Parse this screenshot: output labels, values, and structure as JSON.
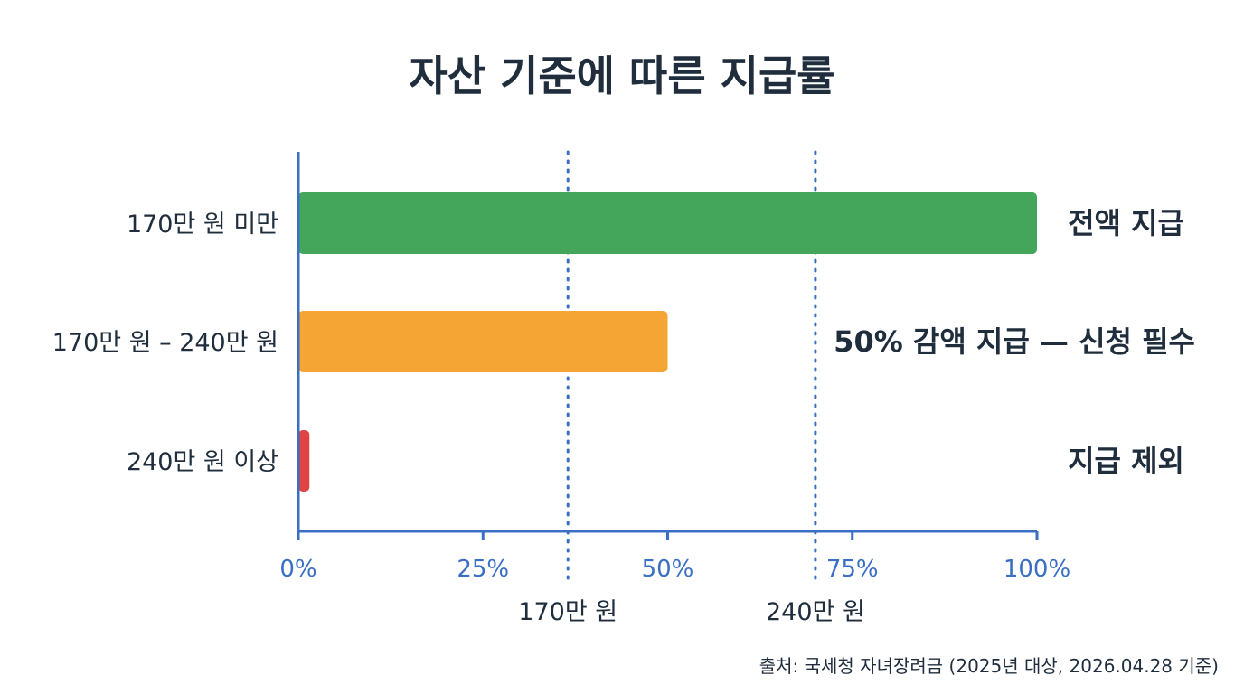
{
  "chart_data": {
    "type": "bar",
    "orientation": "horizontal",
    "title": "자산 기준에 따른 지급률",
    "categories": [
      "170만 원 미만",
      "170만 원 – 240만 원",
      "240만 원 이상"
    ],
    "values": [
      100,
      50,
      1.5
    ],
    "bar_labels": [
      "전액 지급",
      "50% 감액 지급 — 신청 필수",
      "지급 제외"
    ],
    "bar_colors": [
      "#43a65b",
      "#f5a533",
      "#e04343"
    ],
    "x_ticks": [
      0,
      25,
      50,
      75,
      100
    ],
    "x_tick_labels": [
      "0%",
      "25%",
      "50%",
      "75%",
      "100%"
    ],
    "xlim": [
      0,
      100
    ],
    "reference_lines": [
      {
        "value": 36.5,
        "label": "170만 원"
      },
      {
        "value": 70,
        "label": "240만 원"
      }
    ],
    "source": "출처: 국세청 자녀장려금 (2025년 대상, 2026.04.28 기준)",
    "axis_color": "#3a6fc4",
    "grid": false
  }
}
